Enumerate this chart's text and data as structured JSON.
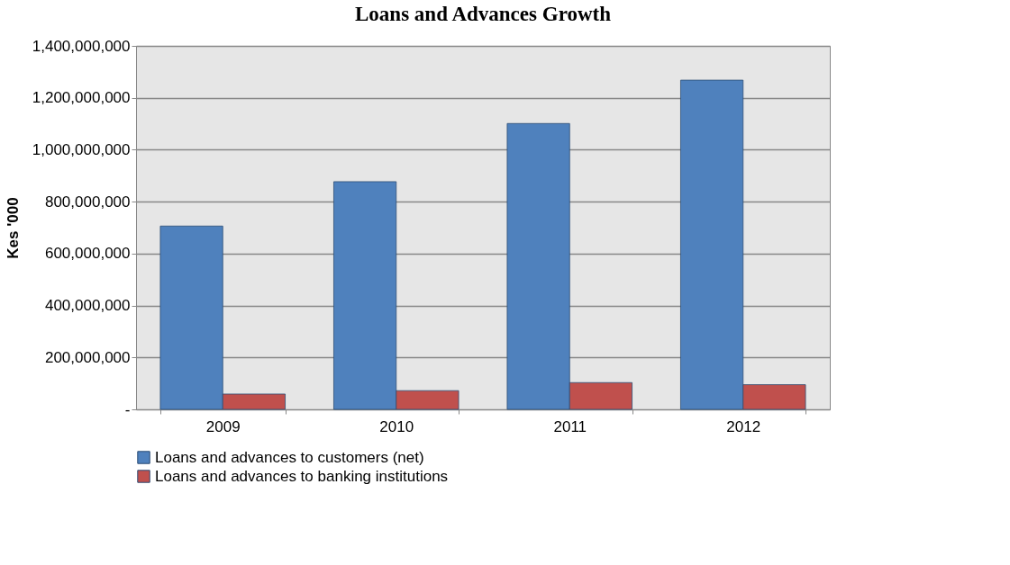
{
  "chart_data": {
    "type": "bar",
    "title": "Loans and Advances Growth",
    "ylabel": "Kes '000",
    "categories": [
      "2009",
      "2010",
      "2011",
      "2012"
    ],
    "series": [
      {
        "name": "Loans and advances to customers (net)",
        "color": "#4f81bd",
        "values": [
          706000000,
          877000000,
          1101000000,
          1268000000
        ]
      },
      {
        "name": "Loans and advances to banking institutions",
        "color": "#c0504d",
        "values": [
          59000000,
          72000000,
          103000000,
          95000000
        ]
      }
    ],
    "ylim": [
      0,
      1400000000
    ],
    "yticks": [
      {
        "value": 0,
        "label": "-"
      },
      {
        "value": 200000000,
        "label": "200,000,000"
      },
      {
        "value": 400000000,
        "label": "400,000,000"
      },
      {
        "value": 600000000,
        "label": "600,000,000"
      },
      {
        "value": 800000000,
        "label": "800,000,000"
      },
      {
        "value": 1000000000,
        "label": "1,000,000,000"
      },
      {
        "value": 1200000000,
        "label": "1,200,000,000"
      },
      {
        "value": 1400000000,
        "label": "1,400,000,000"
      }
    ],
    "grid": "y",
    "legend": "bottom"
  }
}
